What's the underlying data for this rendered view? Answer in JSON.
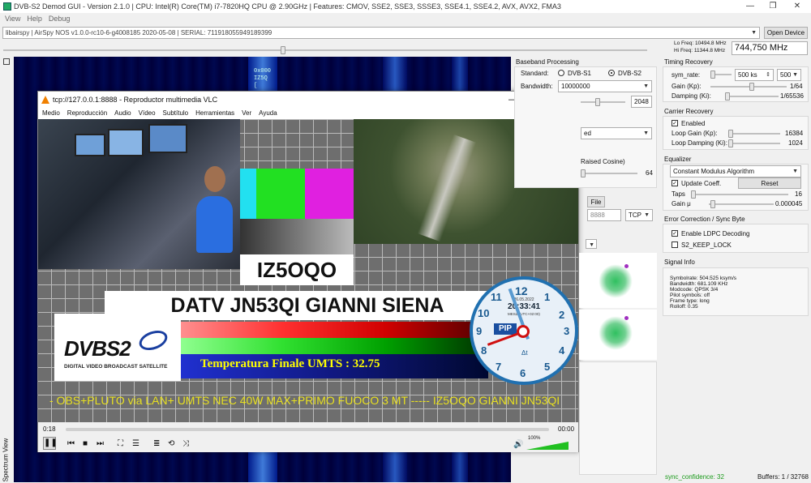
{
  "app": {
    "title": "DVB-S2 Demod GUI - Version 2.1.0 | CPU: Intel(R) Core(TM) i7-7820HQ CPU @ 2.90GHz | Features: CMOV, SSE2, SSE3, SSSE3, SSE4.1, SSE4.2, AVX, AVX2, FMA3"
  },
  "menu": [
    "View",
    "Help",
    "Debug"
  ],
  "device": {
    "value": "libairspy | AirSpy NOS v1.0.0-rc10-6-g4008185 2020-05-08 | SERIAL: 711918055949189399",
    "open_label": "Open Device",
    "lo_freq": "Lo Freq: 10494.8 MHz",
    "hi_freq": "Hi Freq: 11344.8 MHz",
    "freq": "744,750 MHz"
  },
  "spectrum": {
    "label": "Spectrum View",
    "overlay": "0x000\nIZ5Q\n["
  },
  "vlc": {
    "title": "tcp://127.0.0.1:8888 - Reproductor multimedia VLC",
    "menu": [
      "Medio",
      "Reproducción",
      "Audio",
      "Vídeo",
      "Subtítulo",
      "Herramientas",
      "Ver",
      "Ayuda"
    ],
    "callsign": "IZ5OQO",
    "station": "DATV JN53QI GIANNI SIENA",
    "temp": "Temperatura Finale UMTS : 32.75",
    "ticker": "- OBS+PLUTO via LAN+ UMTS NEC 40W MAX+PRIMO FUOCO 3 MT -----  IZ5OQO  GIANNI JN53QI",
    "logo_big": "DVBS2",
    "logo_sub": "DIGITAL VIDEO BROADCAST SATELLITE",
    "clock_date": "26.05.2022",
    "clock_time": "20:33:41",
    "clock_tz": "MESZ (UTC+02:00)",
    "clock_label": "PIP",
    "clock_dt": "Δt",
    "clock_nums": [
      "12",
      "1",
      "2",
      "3",
      "4",
      "5",
      "6",
      "7",
      "8",
      "9",
      "10",
      "11"
    ],
    "time_elapsed": "0:18",
    "time_total": "00:00",
    "volume": "100%",
    "progress": 0.0,
    "volume_level": 1.0
  },
  "baseband": {
    "title": "Baseband Processing",
    "standard_label": "Standard:",
    "std1": "DVB-S1",
    "std2": "DVB-S2",
    "bandwidth_label": "Bandwidth:",
    "bandwidth": "10000000",
    "fft": "2048",
    "mode_partial": "ed",
    "filter_partial": "Raised Cosine)",
    "taps_val": "64",
    "file_label": "File",
    "port": "8888",
    "proto": "TCP"
  },
  "timing": {
    "title": "Timing Recovery",
    "sym_rate_label": "sym_rate:",
    "sym_rate": "500 ks",
    "sym_rate2": "500",
    "gain_label": "Gain (Kp):",
    "gain_val": "1/64",
    "damping_label": "Damping (Ki):",
    "damping_val": "1/65536"
  },
  "carrier": {
    "title": "Carrier Recovery",
    "enabled": "Enabled",
    "gain_label": "Loop Gain (Kp):",
    "gain_val": "16384",
    "damping_label": "Loop Damping (Ki):",
    "damping_val": "1024"
  },
  "equalizer": {
    "title": "Equalizer",
    "algo": "Constant Modulus Algorithm",
    "update": "Update Coeff.",
    "reset": "Reset",
    "taps_label": "Taps",
    "taps_val": "16",
    "gain_label": "Gain μ",
    "gain_val": "0.000045"
  },
  "ecc": {
    "title": "Error Correction / Sync Byte",
    "ldpc": "Enable LDPC Decoding",
    "s2lock": "S2_KEEP_LOCK"
  },
  "signal": {
    "title": "Signal Info",
    "lines": [
      "Symbolrate: 504.525 ksym/s",
      "Bandwidth: 681.109 KHz",
      "Modcode: QPSK 3/4",
      "Pilot symbols: off",
      "Frame type: long",
      "Rolloff: 0.35"
    ]
  },
  "status": {
    "sync": "sync_confidence: 32",
    "buffers": "Buffers: 1 / 32768"
  },
  "colors": {
    "accent": "#0078d7",
    "spectrum_bg": "#00003a",
    "sync_green": "#1a9a1a"
  }
}
